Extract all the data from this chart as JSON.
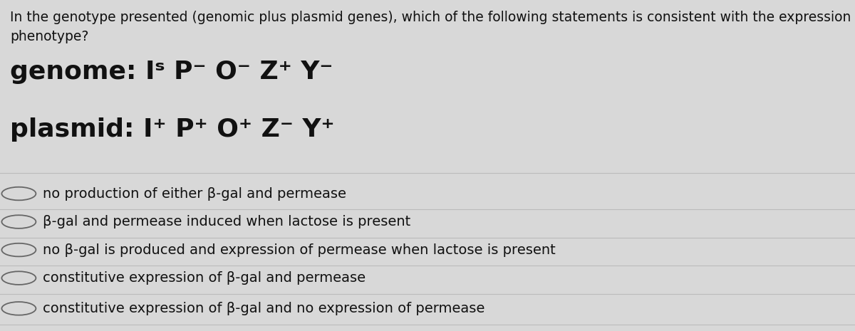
{
  "question_line1": "In the genotype presented (genomic plus plasmid genes), which of the following statements is consistent with the expression",
  "question_line2": "phenotype?",
  "genome_label": "genome: ",
  "genome_formula": "Iˢ P⁻ O⁻ Z⁺ Y⁻",
  "plasmid_label": "plasmid: ",
  "plasmid_formula": "I⁺ P⁺ O⁺ Z⁻ Y⁺",
  "options": [
    "no production of either β-gal and permease",
    "β-gal and permease induced when lactose is present",
    "no β-gal is produced and expression of permease when lactose is present",
    "constitutive expression of β-gal and permease",
    "constitutive expression of β-gal and no expression of permease"
  ],
  "bg_color": "#d8d8d8",
  "text_color": "#111111",
  "question_fontsize": 13.5,
  "genome_fontsize": 26,
  "plasmid_fontsize": 26,
  "option_fontsize": 14,
  "fig_width": 12.0,
  "fig_height": 4.65
}
